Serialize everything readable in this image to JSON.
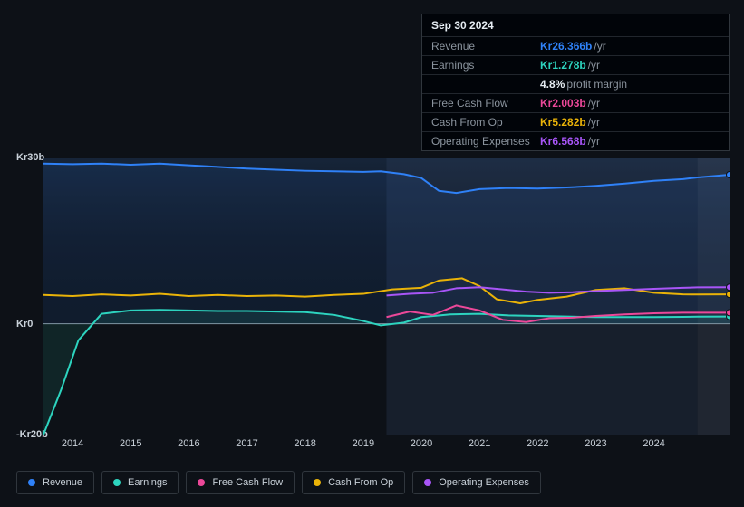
{
  "tooltip": {
    "date": "Sep 30 2024",
    "rows": [
      {
        "label": "Revenue",
        "value": "Kr26.366b",
        "unit": "/yr",
        "color": "#2f81f7"
      },
      {
        "label": "Earnings",
        "value": "Kr1.278b",
        "unit": "/yr",
        "color": "#2dd4bf"
      },
      {
        "label": "",
        "value": "4.8%",
        "unit": "profit margin",
        "color": "#e6edf3"
      },
      {
        "label": "Free Cash Flow",
        "value": "Kr2.003b",
        "unit": "/yr",
        "color": "#ec4899"
      },
      {
        "label": "Cash From Op",
        "value": "Kr5.282b",
        "unit": "/yr",
        "color": "#eab308"
      },
      {
        "label": "Operating Expenses",
        "value": "Kr6.568b",
        "unit": "/yr",
        "color": "#a855f7"
      }
    ]
  },
  "chart": {
    "type": "line",
    "background_color": "#0d1117",
    "plot_bg_gradient_top": "rgba(28,50,80,0.6)",
    "plot_bg_gradient_bottom": "rgba(13,17,23,0.0)",
    "grid_color": "#30363d",
    "zero_line_color": "#8b949e",
    "forecast_shade_start_x": 2024.75,
    "forecast_shade_color": "rgba(120,140,170,0.18)",
    "history_shade_start_x": 2019.4,
    "history_shade_end_x": 2024.75,
    "history_shade_color": "rgba(50,70,100,0.28)",
    "xlim": [
      2013.5,
      2025.3
    ],
    "ylim": [
      -20,
      30
    ],
    "x_ticks": [
      2014,
      2015,
      2016,
      2017,
      2018,
      2019,
      2020,
      2021,
      2022,
      2023,
      2024
    ],
    "y_ticks": [
      {
        "v": 30,
        "label": "Kr30b"
      },
      {
        "v": 0,
        "label": "Kr0"
      },
      {
        "v": -20,
        "label": "-Kr20b"
      }
    ],
    "label_fontsize": 11,
    "line_width": 2,
    "end_point_radius": 3.5,
    "series": [
      {
        "name": "Revenue",
        "color": "#2f81f7",
        "fill_opacity": 0.1,
        "data": [
          [
            2013.5,
            28.9
          ],
          [
            2014,
            28.8
          ],
          [
            2014.5,
            28.9
          ],
          [
            2015,
            28.7
          ],
          [
            2015.5,
            28.9
          ],
          [
            2016,
            28.6
          ],
          [
            2016.5,
            28.3
          ],
          [
            2017,
            28.0
          ],
          [
            2017.5,
            27.8
          ],
          [
            2018,
            27.6
          ],
          [
            2018.5,
            27.5
          ],
          [
            2019,
            27.4
          ],
          [
            2019.3,
            27.5
          ],
          [
            2019.7,
            27.0
          ],
          [
            2020,
            26.3
          ],
          [
            2020.3,
            24.0
          ],
          [
            2020.6,
            23.6
          ],
          [
            2021,
            24.3
          ],
          [
            2021.5,
            24.5
          ],
          [
            2022,
            24.4
          ],
          [
            2022.5,
            24.6
          ],
          [
            2023,
            24.9
          ],
          [
            2023.5,
            25.3
          ],
          [
            2024,
            25.8
          ],
          [
            2024.5,
            26.1
          ],
          [
            2024.75,
            26.4
          ],
          [
            2025.3,
            26.9
          ]
        ]
      },
      {
        "name": "Earnings",
        "color": "#2dd4bf",
        "fill_opacity": 0.1,
        "data": [
          [
            2013.5,
            -20
          ],
          [
            2013.8,
            -12
          ],
          [
            2014.1,
            -3
          ],
          [
            2014.5,
            1.8
          ],
          [
            2015,
            2.4
          ],
          [
            2015.5,
            2.5
          ],
          [
            2016,
            2.4
          ],
          [
            2016.5,
            2.3
          ],
          [
            2017,
            2.3
          ],
          [
            2017.5,
            2.2
          ],
          [
            2018,
            2.1
          ],
          [
            2018.5,
            1.6
          ],
          [
            2019,
            0.5
          ],
          [
            2019.3,
            -0.3
          ],
          [
            2019.7,
            0.2
          ],
          [
            2020,
            1.2
          ],
          [
            2020.5,
            1.7
          ],
          [
            2021,
            1.8
          ],
          [
            2021.5,
            1.5
          ],
          [
            2022,
            1.4
          ],
          [
            2022.5,
            1.3
          ],
          [
            2023,
            1.2
          ],
          [
            2023.5,
            1.2
          ],
          [
            2024,
            1.2
          ],
          [
            2024.5,
            1.25
          ],
          [
            2024.75,
            1.28
          ],
          [
            2025.3,
            1.3
          ]
        ]
      },
      {
        "name": "Free Cash Flow",
        "color": "#ec4899",
        "fill_opacity": 0.0,
        "data": [
          [
            2019.4,
            1.2
          ],
          [
            2019.8,
            2.2
          ],
          [
            2020.2,
            1.6
          ],
          [
            2020.6,
            3.3
          ],
          [
            2021,
            2.4
          ],
          [
            2021.4,
            0.7
          ],
          [
            2021.8,
            0.3
          ],
          [
            2022.2,
            1.0
          ],
          [
            2022.6,
            1.1
          ],
          [
            2023,
            1.4
          ],
          [
            2023.5,
            1.7
          ],
          [
            2024,
            1.9
          ],
          [
            2024.5,
            2.0
          ],
          [
            2024.75,
            2.0
          ],
          [
            2025.3,
            2.0
          ]
        ]
      },
      {
        "name": "Cash From Op",
        "color": "#eab308",
        "fill_opacity": 0.0,
        "data": [
          [
            2013.5,
            5.2
          ],
          [
            2014,
            5.0
          ],
          [
            2014.5,
            5.3
          ],
          [
            2015,
            5.1
          ],
          [
            2015.5,
            5.4
          ],
          [
            2016,
            5.0
          ],
          [
            2016.5,
            5.2
          ],
          [
            2017,
            5.0
          ],
          [
            2017.5,
            5.1
          ],
          [
            2018,
            4.9
          ],
          [
            2018.5,
            5.2
          ],
          [
            2019,
            5.4
          ],
          [
            2019.5,
            6.2
          ],
          [
            2020,
            6.5
          ],
          [
            2020.3,
            7.8
          ],
          [
            2020.7,
            8.2
          ],
          [
            2021,
            6.8
          ],
          [
            2021.3,
            4.4
          ],
          [
            2021.7,
            3.7
          ],
          [
            2022,
            4.3
          ],
          [
            2022.5,
            4.9
          ],
          [
            2023,
            6.1
          ],
          [
            2023.5,
            6.4
          ],
          [
            2024,
            5.6
          ],
          [
            2024.5,
            5.3
          ],
          [
            2024.75,
            5.28
          ],
          [
            2025.3,
            5.3
          ]
        ]
      },
      {
        "name": "Operating Expenses",
        "color": "#a855f7",
        "fill_opacity": 0.0,
        "data": [
          [
            2019.4,
            5.1
          ],
          [
            2019.8,
            5.4
          ],
          [
            2020.2,
            5.6
          ],
          [
            2020.6,
            6.4
          ],
          [
            2021,
            6.6
          ],
          [
            2021.4,
            6.2
          ],
          [
            2021.8,
            5.8
          ],
          [
            2022.2,
            5.6
          ],
          [
            2022.6,
            5.7
          ],
          [
            2023,
            5.9
          ],
          [
            2023.5,
            6.1
          ],
          [
            2024,
            6.3
          ],
          [
            2024.5,
            6.5
          ],
          [
            2024.75,
            6.57
          ],
          [
            2025.3,
            6.6
          ]
        ]
      }
    ],
    "legend": [
      {
        "label": "Revenue",
        "color": "#2f81f7"
      },
      {
        "label": "Earnings",
        "color": "#2dd4bf"
      },
      {
        "label": "Free Cash Flow",
        "color": "#ec4899"
      },
      {
        "label": "Cash From Op",
        "color": "#eab308"
      },
      {
        "label": "Operating Expenses",
        "color": "#a855f7"
      }
    ]
  }
}
